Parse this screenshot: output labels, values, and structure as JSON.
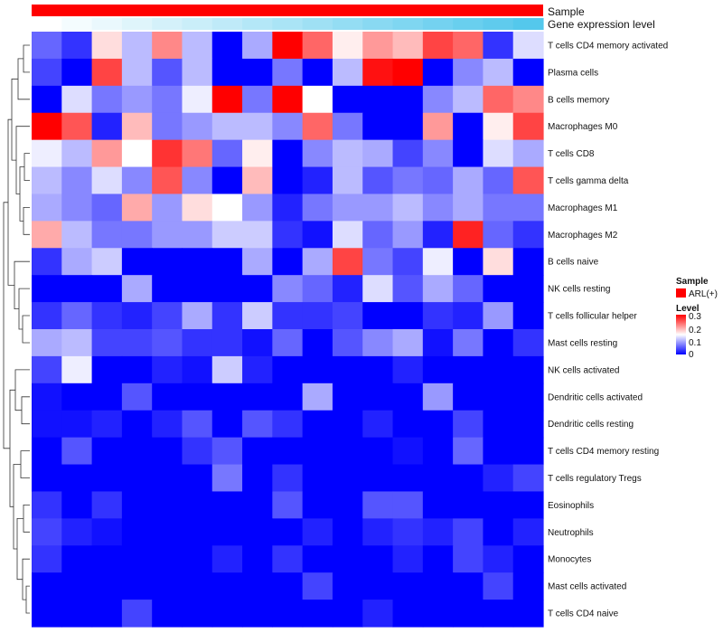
{
  "chart_data": {
    "type": "heatmap",
    "title": "",
    "annotations": [
      {
        "name": "Sample",
        "kind": "categorical",
        "values": [
          "ARL(+)"
        ],
        "colors": [
          "#ff0000"
        ]
      },
      {
        "name": "Gene expression level",
        "kind": "gradient",
        "colors": [
          "#ffffff",
          "#54c8ec"
        ]
      }
    ],
    "rows": [
      "T cells CD4 memory activated",
      "Plasma cells",
      "B cells memory",
      "Macrophages M0",
      "T cells CD8",
      "T cells gamma delta",
      "Macrophages M1",
      "Macrophages M2",
      "B cells naive",
      "NK cells resting",
      "T cells follicular helper",
      "Mast cells resting",
      "NK cells activated",
      "Dendritic cells activated",
      "Dendritic cells resting",
      "T cells CD4 memory resting",
      "T cells regulatory  Tregs",
      "Eosinophils",
      "Neutrophils",
      "Monocytes",
      "Mast cells activated",
      "T cells CD4 naive"
    ],
    "n_columns": 17,
    "values": [
      [
        0.06,
        0.03,
        0.17,
        0.11,
        0.22,
        0.11,
        0.0,
        0.1,
        0.3,
        0.24,
        0.16,
        0.21,
        0.19,
        0.26,
        0.24,
        0.03,
        0.13
      ],
      [
        0.04,
        0.0,
        0.26,
        0.11,
        0.05,
        0.11,
        0.0,
        0.0,
        0.07,
        0.0,
        0.11,
        0.29,
        0.3,
        0.0,
        0.08,
        0.11,
        0.0
      ],
      [
        0.0,
        0.13,
        0.07,
        0.09,
        0.07,
        0.14,
        0.3,
        0.07,
        0.3,
        0.15,
        0.0,
        0.0,
        0.0,
        0.08,
        0.11,
        0.24,
        0.22
      ],
      [
        0.3,
        0.25,
        0.02,
        0.19,
        0.07,
        0.09,
        0.11,
        0.11,
        0.08,
        0.24,
        0.07,
        0.0,
        0.0,
        0.21,
        0.0,
        0.16,
        0.26
      ],
      [
        0.14,
        0.11,
        0.21,
        0.15,
        0.27,
        0.23,
        0.06,
        0.16,
        0.0,
        0.08,
        0.11,
        0.1,
        0.04,
        0.08,
        0.0,
        0.13,
        0.1
      ],
      [
        0.11,
        0.08,
        0.13,
        0.08,
        0.25,
        0.08,
        0.0,
        0.19,
        0.0,
        0.02,
        0.11,
        0.05,
        0.07,
        0.06,
        0.1,
        0.06,
        0.25
      ],
      [
        0.1,
        0.08,
        0.06,
        0.2,
        0.09,
        0.17,
        0.15,
        0.09,
        0.02,
        0.07,
        0.09,
        0.09,
        0.11,
        0.08,
        0.1,
        0.07,
        0.07
      ],
      [
        0.2,
        0.11,
        0.07,
        0.07,
        0.09,
        0.09,
        0.12,
        0.12,
        0.03,
        0.01,
        0.13,
        0.06,
        0.09,
        0.02,
        0.28,
        0.06,
        0.03
      ],
      [
        0.03,
        0.1,
        0.12,
        0.0,
        0.0,
        0.0,
        0.0,
        0.1,
        0.0,
        0.1,
        0.26,
        0.07,
        0.04,
        0.14,
        0.0,
        0.17,
        0.0
      ],
      [
        0.0,
        0.0,
        0.0,
        0.1,
        0.0,
        0.0,
        0.0,
        0.0,
        0.08,
        0.06,
        0.02,
        0.13,
        0.05,
        0.1,
        0.06,
        0.0,
        0.0
      ],
      [
        0.03,
        0.06,
        0.03,
        0.02,
        0.04,
        0.1,
        0.03,
        0.12,
        0.03,
        0.03,
        0.04,
        0.0,
        0.0,
        0.03,
        0.02,
        0.09,
        0.0
      ],
      [
        0.1,
        0.11,
        0.04,
        0.04,
        0.05,
        0.03,
        0.03,
        0.01,
        0.06,
        0.0,
        0.05,
        0.08,
        0.1,
        0.01,
        0.07,
        0.0,
        0.03
      ],
      [
        0.04,
        0.14,
        0.0,
        0.0,
        0.02,
        0.01,
        0.12,
        0.02,
        0.0,
        0.0,
        0.0,
        0.0,
        0.02,
        0.0,
        0.0,
        0.0,
        0.0
      ],
      [
        0.01,
        0.0,
        0.0,
        0.05,
        0.0,
        0.0,
        0.0,
        0.0,
        0.0,
        0.1,
        0.0,
        0.0,
        0.0,
        0.09,
        0.0,
        0.0,
        0.0
      ],
      [
        0.01,
        0.01,
        0.02,
        0.0,
        0.02,
        0.05,
        0.0,
        0.05,
        0.03,
        0.0,
        0.0,
        0.02,
        0.0,
        0.0,
        0.04,
        0.0,
        0.0
      ],
      [
        0.0,
        0.05,
        0.0,
        0.0,
        0.0,
        0.03,
        0.05,
        0.0,
        0.0,
        0.0,
        0.0,
        0.0,
        0.01,
        0.0,
        0.06,
        0.0,
        0.0
      ],
      [
        0.0,
        0.0,
        0.0,
        0.0,
        0.0,
        0.0,
        0.07,
        0.0,
        0.03,
        0.0,
        0.0,
        0.0,
        0.0,
        0.0,
        0.0,
        0.02,
        0.04
      ],
      [
        0.03,
        0.0,
        0.03,
        0.0,
        0.0,
        0.0,
        0.0,
        0.0,
        0.05,
        0.0,
        0.0,
        0.05,
        0.05,
        0.0,
        0.0,
        0.0,
        0.0
      ],
      [
        0.04,
        0.02,
        0.01,
        0.0,
        0.0,
        0.0,
        0.0,
        0.0,
        0.0,
        0.02,
        0.0,
        0.02,
        0.03,
        0.02,
        0.04,
        0.0,
        0.02
      ],
      [
        0.03,
        0.0,
        0.0,
        0.0,
        0.0,
        0.0,
        0.02,
        0.0,
        0.03,
        0.0,
        0.0,
        0.0,
        0.02,
        0.0,
        0.04,
        0.02,
        0.0
      ],
      [
        0.0,
        0.0,
        0.0,
        0.0,
        0.0,
        0.0,
        0.0,
        0.0,
        0.0,
        0.04,
        0.0,
        0.0,
        0.0,
        0.0,
        0.0,
        0.04,
        0.0
      ],
      [
        0.0,
        0.0,
        0.0,
        0.04,
        0.0,
        0.0,
        0.0,
        0.0,
        0.0,
        0.0,
        0.0,
        0.02,
        0.0,
        0.0,
        0.0,
        0.0,
        0.0
      ]
    ],
    "color_scale": {
      "min": 0,
      "mid": 0.15,
      "max": 0.3,
      "low": "#0000ff",
      "mid_color": "#ffffff",
      "high": "#ff0000"
    },
    "legend": {
      "sample_title": "Sample",
      "sample_entry": "ARL(+)",
      "level_title": "Level",
      "ticks": [
        "0.3",
        "0.2",
        "0.1",
        "0"
      ],
      "position": "right"
    },
    "dendrogram": "rows"
  }
}
